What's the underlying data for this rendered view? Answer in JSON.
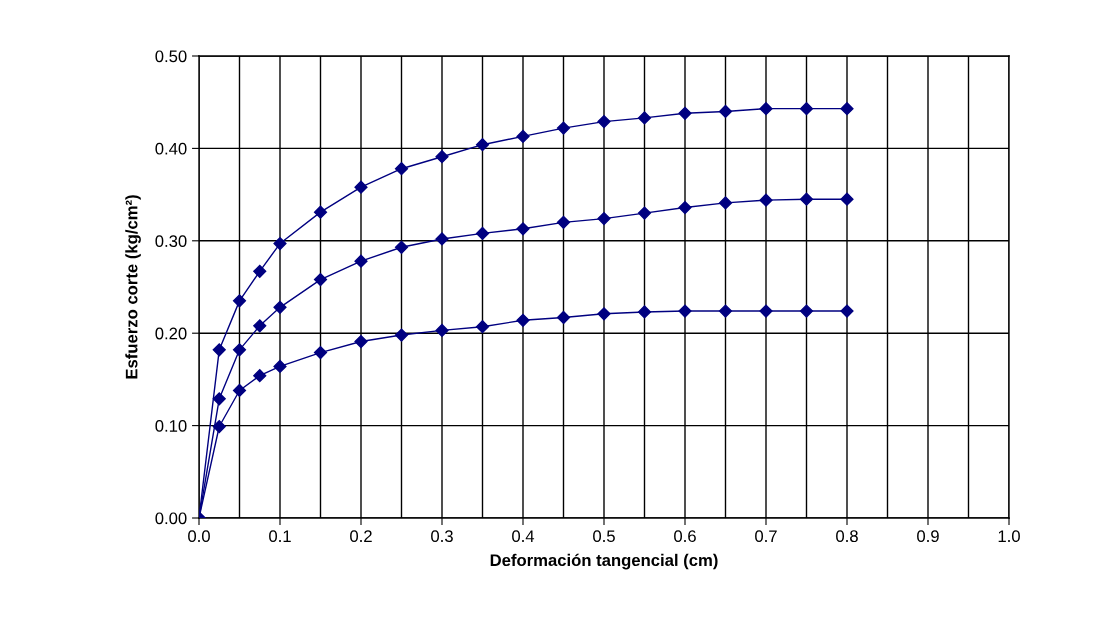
{
  "chart_data": {
    "type": "line",
    "xlabel": "Deformación tangencial (cm)",
    "ylabel": "Esfuerzo corte (kg/cm²)",
    "x": [
      0,
      0.025,
      0.05,
      0.075,
      0.1,
      0.15,
      0.2,
      0.25,
      0.3,
      0.35,
      0.4,
      0.45,
      0.5,
      0.55,
      0.6,
      0.65,
      0.7,
      0.75,
      0.8
    ],
    "series": [
      {
        "color": "#000080",
        "values": [
          0,
          0.182,
          0.235,
          0.267,
          0.297,
          0.331,
          0.358,
          0.378,
          0.391,
          0.404,
          0.413,
          0.422,
          0.429,
          0.433,
          0.438,
          0.44,
          0.443,
          0.443,
          0.443
        ]
      },
      {
        "color": "#000080",
        "values": [
          0,
          0.129,
          0.182,
          0.208,
          0.228,
          0.258,
          0.278,
          0.293,
          0.302,
          0.308,
          0.313,
          0.32,
          0.324,
          0.33,
          0.336,
          0.341,
          0.344,
          0.345,
          0.345
        ]
      },
      {
        "color": "#000080",
        "values": [
          0,
          0.099,
          0.138,
          0.154,
          0.164,
          0.179,
          0.191,
          0.198,
          0.203,
          0.207,
          0.214,
          0.217,
          0.221,
          0.223,
          0.224,
          0.224,
          0.224,
          0.224,
          0.224
        ]
      }
    ],
    "xlim": [
      0,
      1.0
    ],
    "ylim": [
      0,
      0.5
    ],
    "xticks": [
      {
        "value": 0,
        "label": "0.0"
      },
      {
        "value": 0.05,
        "label": null
      },
      {
        "value": 0.1,
        "label": "0.1"
      },
      {
        "value": 0.15,
        "label": null
      },
      {
        "value": 0.2,
        "label": "0.2"
      },
      {
        "value": 0.25,
        "label": null
      },
      {
        "value": 0.3,
        "label": "0.3"
      },
      {
        "value": 0.35,
        "label": null
      },
      {
        "value": 0.4,
        "label": "0.4"
      },
      {
        "value": 0.45,
        "label": null
      },
      {
        "value": 0.5,
        "label": "0.5"
      },
      {
        "value": 0.55,
        "label": null
      },
      {
        "value": 0.6,
        "label": "0.6"
      },
      {
        "value": 0.65,
        "label": null
      },
      {
        "value": 0.7,
        "label": "0.7"
      },
      {
        "value": 0.75,
        "label": null
      },
      {
        "value": 0.8,
        "label": "0.8"
      },
      {
        "value": 0.85,
        "label": null
      },
      {
        "value": 0.9,
        "label": "0.9"
      },
      {
        "value": 0.95,
        "label": null
      },
      {
        "value": 1.0,
        "label": "1.0"
      }
    ],
    "yticks": [
      {
        "value": 0,
        "label": "0.00"
      },
      {
        "value": 0.1,
        "label": "0.10"
      },
      {
        "value": 0.2,
        "label": "0.20"
      },
      {
        "value": 0.3,
        "label": "0.30"
      },
      {
        "value": 0.4,
        "label": "0.40"
      },
      {
        "value": 0.5,
        "label": "0.50"
      }
    ],
    "grid": true,
    "marker": "diamond",
    "line_style": "solid"
  }
}
